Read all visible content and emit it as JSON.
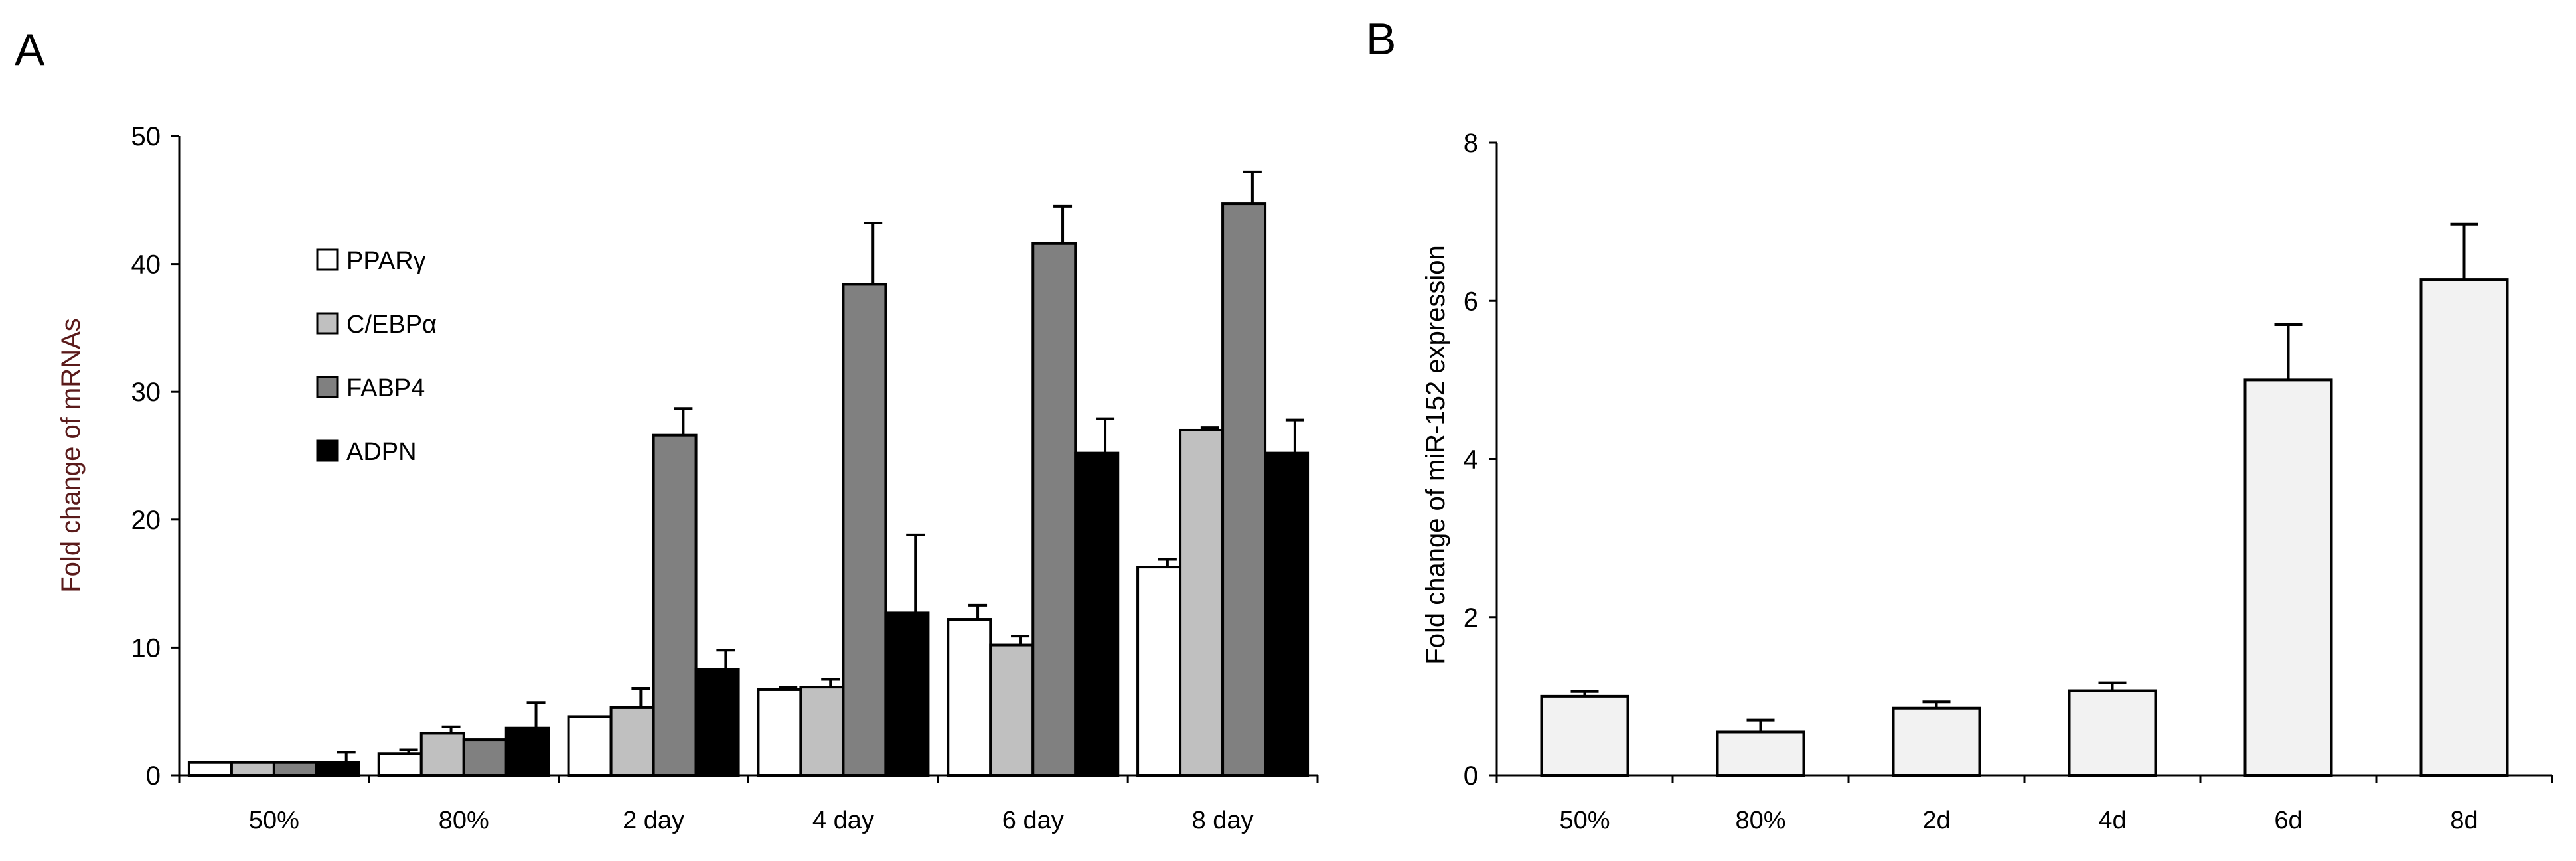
{
  "panels": [
    {
      "label": "A"
    },
    {
      "label": "B"
    }
  ],
  "chart_data": [
    {
      "type": "bar",
      "panel": "A",
      "title": "",
      "xlabel": "",
      "ylabel": "Fold change of mRNAs",
      "ylim": [
        0,
        50
      ],
      "yticks": [
        0,
        10,
        20,
        30,
        40,
        50
      ],
      "grid": false,
      "legend_position": "top-left",
      "categories": [
        "50%",
        "80%",
        "2 day",
        "4 day",
        "6 day",
        "8 day"
      ],
      "series": [
        {
          "name": "PPARγ",
          "color": "#ffffff",
          "values": [
            1,
            1.7,
            4.6,
            6.7,
            12.2,
            16.3
          ],
          "errors": [
            0,
            0.3,
            0,
            0.2,
            1.1,
            0.6
          ]
        },
        {
          "name": "C/EBPα",
          "color": "#c0c0c0",
          "values": [
            1,
            3.3,
            5.3,
            6.9,
            10.2,
            27.0
          ],
          "errors": [
            0,
            0.5,
            1.5,
            0.6,
            0.7,
            0.2
          ]
        },
        {
          "name": "FABP4",
          "color": "#808080",
          "values": [
            1,
            2.8,
            26.6,
            38.4,
            41.6,
            44.7
          ],
          "errors": [
            0,
            0,
            2.1,
            4.8,
            2.9,
            2.5
          ]
        },
        {
          "name": "ADPN",
          "color": "#000000",
          "values": [
            1,
            3.7,
            8.3,
            12.7,
            25.2,
            25.2
          ],
          "errors": [
            0.8,
            2.0,
            1.5,
            6.1,
            2.7,
            2.6
          ]
        }
      ]
    },
    {
      "type": "bar",
      "panel": "B",
      "title": "",
      "xlabel": "",
      "ylabel": "Fold change of miR-152 expression",
      "ylim": [
        0,
        8
      ],
      "yticks": [
        0,
        2,
        4,
        6,
        8
      ],
      "grid": false,
      "categories": [
        "50%",
        "80%",
        "2d",
        "4d",
        "6d",
        "8d"
      ],
      "series": [
        {
          "name": "miR-152",
          "color": "#f2f2f2",
          "values": [
            1.0,
            0.55,
            0.85,
            1.07,
            5.0,
            6.27
          ],
          "errors": [
            0.06,
            0.15,
            0.08,
            0.1,
            0.7,
            0.7
          ]
        }
      ]
    }
  ]
}
